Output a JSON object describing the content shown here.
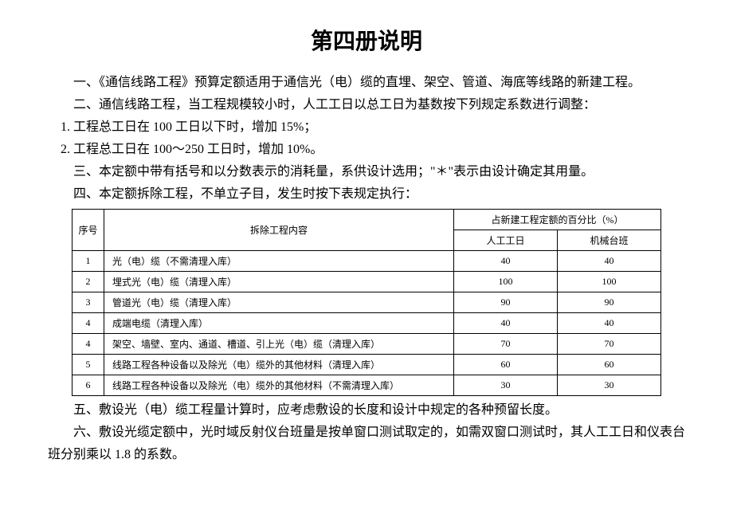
{
  "title": "第四册说明",
  "paragraphs": {
    "p1": "一、《通信线路工程》预算定额适用于通信光（电）缆的直埋、架空、管道、海底等线路的新建工程。",
    "p2": "二、通信线路工程，当工程规模较小时，人工工日以总工日为基数按下列规定系数进行调整：",
    "p2a": "1. 工程总工日在 100 工日以下时，增加 15%；",
    "p2b": "2. 工程总工日在 100～250 工日时，增加 10%。",
    "p3": "三、本定额中带有括号和以分数表示的消耗量，系供设计选用；\"＊\"表示由设计确定其用量。",
    "p4": "四、本定额拆除工程，不单立子目，发生时按下表规定执行：",
    "p5": "五、敷设光（电）缆工程量计算时，应考虑敷设的长度和设计中规定的各种预留长度。",
    "p6": "六、敷设光缆定额中，光时域反射仪台班量是按单窗口测试取定的，如需双窗口测试时，其人工工日和仪表台班分别乘以 1.8 的系数。"
  },
  "table": {
    "header_seq": "序号",
    "header_content": "拆除工程内容",
    "header_pct_group": "占新建工程定额的百分比（%）",
    "header_labor": "人工工日",
    "header_machine": "机械台班",
    "rows": [
      {
        "seq": "1",
        "content": "光（电）缆（不需清理入库）",
        "labor": "40",
        "machine": "40"
      },
      {
        "seq": "2",
        "content": "埋式光（电）缆（清理入库）",
        "labor": "100",
        "machine": "100"
      },
      {
        "seq": "3",
        "content": "管道光（电）缆（清理入库）",
        "labor": "90",
        "machine": "90"
      },
      {
        "seq": "4",
        "content": "成端电缆（清理入库）",
        "labor": "40",
        "machine": "40"
      },
      {
        "seq": "4",
        "content": "架空、墙壁、室内、通道、槽道、引上光（电）缆（清理入库）",
        "labor": "70",
        "machine": "70"
      },
      {
        "seq": "5",
        "content": "线路工程各种设备以及除光（电）缆外的其他材料（清理入库）",
        "labor": "60",
        "machine": "60"
      },
      {
        "seq": "6",
        "content": "线路工程各种设备以及除光（电）缆外的其他材料（不需清理入库）",
        "labor": "30",
        "machine": "30"
      }
    ]
  }
}
